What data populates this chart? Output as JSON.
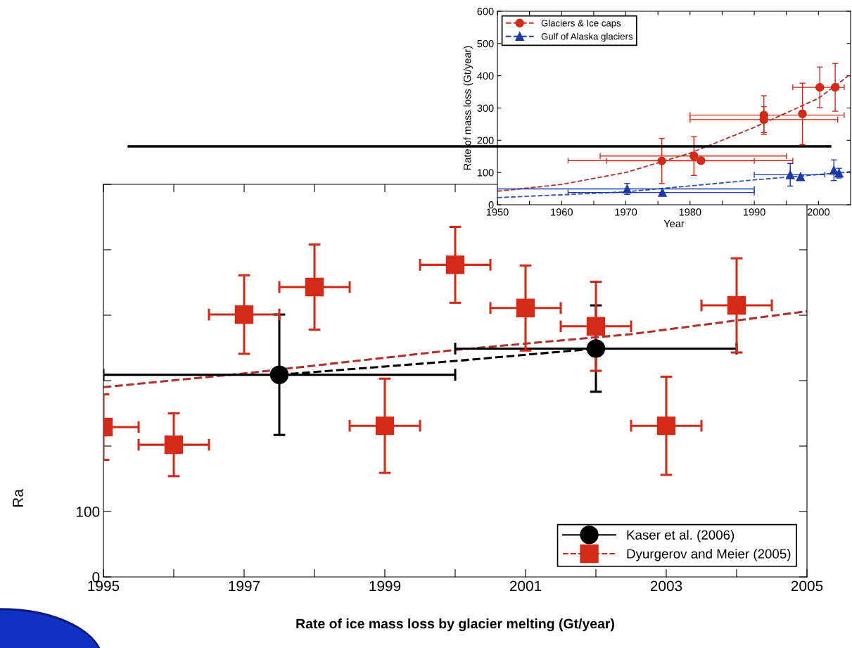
{
  "chart_data": [
    {
      "type": "scatter",
      "xlabel": "Rate of ice mass loss by glacier melting (Gt/year)",
      "ylabel": "Ra",
      "xlim": [
        1995,
        2005
      ],
      "ylim": [
        0,
        600
      ],
      "xticks": [
        1995,
        {
          "value": 1996,
          "label": null
        },
        1997,
        {
          "value": 1998,
          "label": null
        },
        1999,
        {
          "value": 2000,
          "label": null
        },
        2001,
        {
          "value": 2002,
          "label": null
        },
        2003,
        {
          "value": 2004,
          "label": null
        },
        2005
      ],
      "yticks": [
        0,
        100,
        {
          "value": 200,
          "label": null
        },
        {
          "value": 300,
          "label": null
        },
        {
          "value": 400,
          "label": null
        },
        {
          "value": 500,
          "label": null
        },
        {
          "value": 600,
          "label": null
        }
      ],
      "legend": "bottom right",
      "grid": false,
      "series": [
        {
          "type": "line",
          "color": "#000000",
          "line_style": "dashed",
          "x": [
            1997.5,
            2000,
            2002
          ],
          "values": [
            309,
            330,
            349
          ]
        },
        {
          "type": "line",
          "color": "#b03030",
          "line_style": "dashed",
          "x": [
            1995,
            1997,
            2000,
            2002.5,
            2005
          ],
          "values": [
            290,
            311,
            347,
            371,
            406
          ]
        },
        {
          "name": "Kaser et al. (2006)",
          "color": "#000000",
          "marker": "circle",
          "line_style": "solid",
          "x": [
            1997.5,
            2002
          ],
          "values": [
            309,
            349
          ],
          "errors": [
            92,
            66
          ],
          "xerrors": [
            2.5,
            2
          ]
        },
        {
          "name": "Dyurgerov and Meier (2005)",
          "color": "#d42a1a",
          "marker": "square",
          "line_style": "dashed",
          "x": [
            1995,
            1996,
            1997,
            1998,
            1999,
            2000,
            2001,
            2002,
            2003,
            2004
          ],
          "values": [
            229,
            202,
            401,
            443,
            231,
            477,
            411,
            383,
            231,
            415
          ],
          "errors": [
            50,
            48,
            60,
            65,
            72,
            58,
            65,
            68,
            75,
            72
          ],
          "xerrors": [
            0.5,
            0.5,
            0.5,
            0.5,
            0.5,
            0.5,
            0.5,
            0.5,
            0.5,
            0.5
          ]
        }
      ]
    },
    {
      "type": "scatter",
      "xlabel": "Year",
      "ylabel": "Rate of mass loss (Gt/year)",
      "xlim": [
        1950,
        2005
      ],
      "ylim": [
        0,
        600
      ],
      "xticks": [
        1950,
        {
          "value": 1955,
          "label": null
        },
        1960,
        {
          "value": 1965,
          "label": null
        },
        1970,
        {
          "value": 1975,
          "label": null
        },
        1980,
        {
          "value": 1985,
          "label": null
        },
        1990,
        {
          "value": 1995,
          "label": null
        },
        2000
      ],
      "yticks": [
        0,
        100,
        200,
        300,
        400,
        500,
        600
      ],
      "legend": "top left",
      "grid": false,
      "ref_lines": [
        {
          "axis": "y",
          "value": 181,
          "color": "#000000",
          "line_style": "solid"
        }
      ],
      "series": [
        {
          "type": "line",
          "color": "#b03030",
          "line_style": "dashed",
          "x": [
            1950,
            1960,
            1970,
            1980,
            1990,
            2000,
            2005
          ],
          "values": [
            42,
            63,
            100,
            160,
            240,
            330,
            405
          ]
        },
        {
          "type": "line",
          "color": "#3050b0",
          "line_style": "dashed",
          "x": [
            1950,
            1970,
            1990,
            2005
          ],
          "values": [
            22,
            40,
            77,
            102
          ]
        },
        {
          "name": "Glaciers & Ice caps",
          "color": "#d42a1a",
          "marker": "circle",
          "line_style": "dashed",
          "x": [
            1975.6,
            1980.6,
            1981.7,
            1991.5,
            1991.5,
            1997.5,
            2000.2,
            2002.6
          ],
          "values": [
            136,
            151,
            137,
            278,
            264,
            282,
            364,
            364
          ],
          "errors": [
            70,
            60,
            null,
            60,
            40,
            95,
            63,
            74
          ],
          "xerrors": [
            [
              1967,
              1990
            ],
            [
              1966,
              1995
            ],
            [
              1961,
              1996
            ],
            [
              1980,
              2004
            ],
            [
              1980,
              2003
            ],
            null,
            [
              1996,
              2004
            ],
            null
          ]
        },
        {
          "name": "Gulf of Alaska glaciers",
          "color": "#1a3aaa",
          "marker": "triangle",
          "line_style": "dashed",
          "x": [
            1970.2,
            1975.7,
            1995.6,
            1997.2,
            2002.4,
            2003.2
          ],
          "values": [
            49,
            38,
            93,
            87,
            107,
            98
          ],
          "errors": [
            17,
            null,
            35,
            null,
            32,
            15
          ],
          "xerrors": [
            [
              1950,
              1990
            ],
            [
              1961,
              1990
            ],
            [
              1990,
              2001
            ],
            null,
            null,
            null
          ]
        }
      ]
    }
  ]
}
